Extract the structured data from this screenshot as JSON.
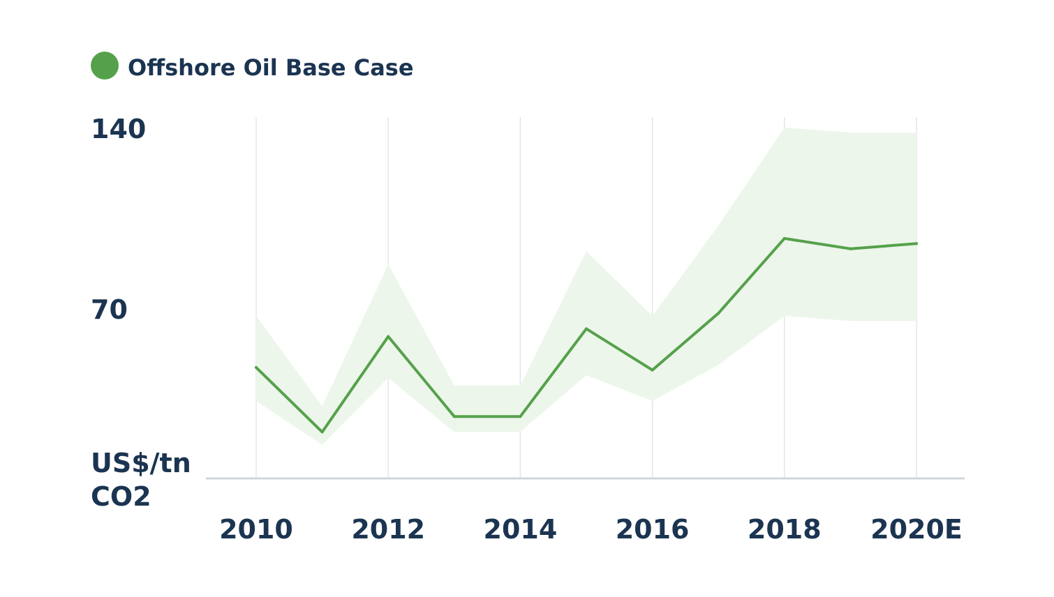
{
  "chart_data": {
    "type": "line",
    "title": "",
    "xlabel": "",
    "ylabel": "US$/tn CO2",
    "ylabel_lines": [
      "US$/tn",
      "CO2"
    ],
    "legend": {
      "placement": "top-left",
      "entries": [
        {
          "name": "Offshore Oil Base Case",
          "color": "#55a14b"
        }
      ]
    },
    "x": [
      2010,
      2011,
      2012,
      2013,
      2014,
      2015,
      2016,
      2017,
      2018,
      2019,
      2020
    ],
    "x_tick_values": [
      2010,
      2012,
      2014,
      2016,
      2018,
      2020
    ],
    "x_tick_labels": [
      "2010",
      "2012",
      "2014",
      "2016",
      "2018",
      "2020E"
    ],
    "y_tick_values": [
      70,
      140
    ],
    "y_tick_labels": [
      "70",
      "140"
    ],
    "ylim": [
      0,
      140
    ],
    "xlim": [
      2010,
      2020
    ],
    "grid": {
      "vertical": true,
      "horizontal": false
    },
    "series": [
      {
        "name": "Offshore Oil Base Case",
        "color": "#55a14b",
        "values": [
          43,
          18,
          55,
          24,
          24,
          58,
          42,
          64,
          93,
          89,
          91
        ],
        "band_upper": [
          63,
          28,
          83,
          36,
          36,
          88,
          63,
          98,
          136,
          134,
          134
        ],
        "band_lower": [
          30,
          13,
          39,
          18,
          18,
          40,
          30,
          44,
          63,
          61,
          61
        ],
        "band_color": "#edf6eb"
      }
    ]
  }
}
